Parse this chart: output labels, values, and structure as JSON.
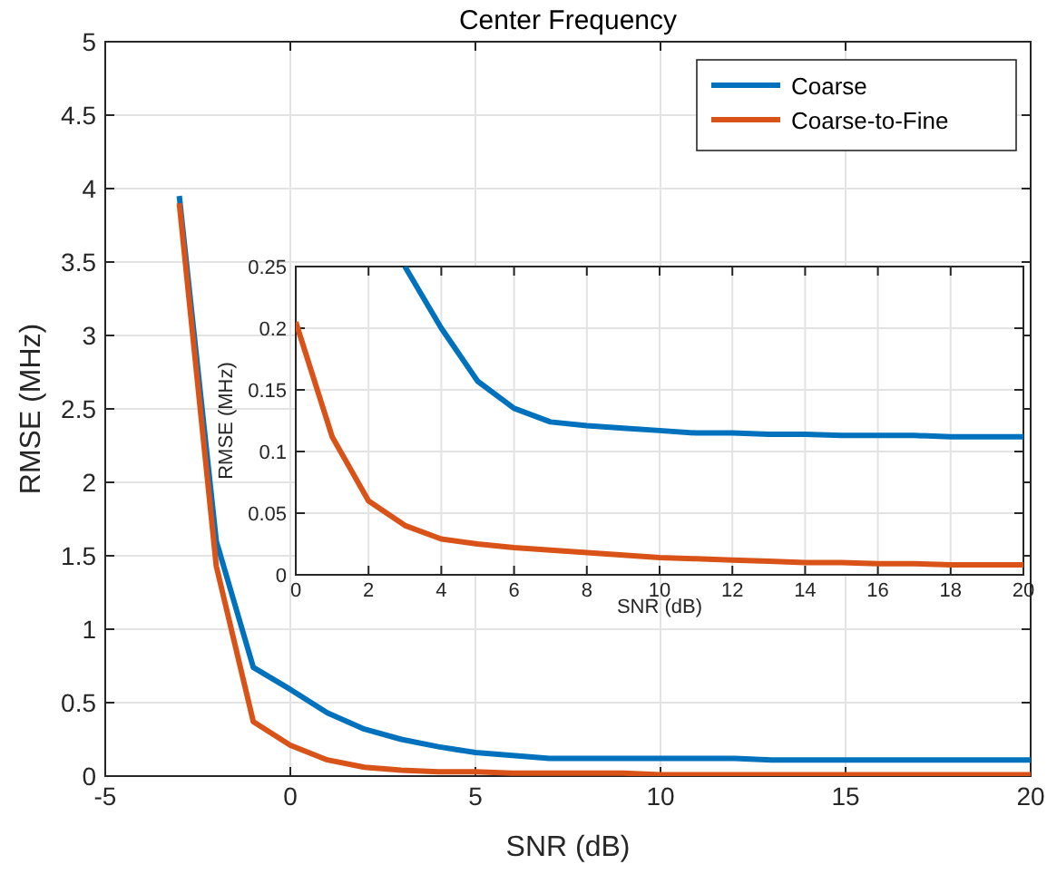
{
  "chart_data": [
    {
      "type": "line",
      "title": "Center Frequency",
      "xlabel": "SNR (dB)",
      "ylabel": "RMSE (MHz)",
      "x": [
        -3,
        -2,
        -1,
        0,
        1,
        2,
        3,
        4,
        5,
        6,
        7,
        8,
        9,
        10,
        11,
        12,
        13,
        14,
        15,
        16,
        17,
        18,
        19,
        20
      ],
      "series": [
        {
          "name": "Coarse",
          "color": "#0072bd",
          "values": [
            3.95,
            1.6,
            0.74,
            0.59,
            0.43,
            0.32,
            0.25,
            0.2,
            0.16,
            0.14,
            0.12,
            0.12,
            0.12,
            0.12,
            0.12,
            0.12,
            0.11,
            0.11,
            0.11,
            0.11,
            0.11,
            0.11,
            0.11,
            0.11
          ]
        },
        {
          "name": "Coarse-to-Fine",
          "color": "#d95319",
          "values": [
            3.9,
            1.43,
            0.37,
            0.21,
            0.11,
            0.06,
            0.04,
            0.03,
            0.03,
            0.02,
            0.02,
            0.02,
            0.02,
            0.01,
            0.01,
            0.01,
            0.01,
            0.01,
            0.01,
            0.01,
            0.01,
            0.01,
            0.01,
            0.01
          ]
        }
      ],
      "xlim": [
        -5,
        20
      ],
      "xticks": [
        -5,
        0,
        5,
        10,
        15,
        20
      ],
      "ylim": [
        0,
        5
      ],
      "yticks": [
        0,
        0.5,
        1,
        1.5,
        2,
        2.5,
        3,
        3.5,
        4,
        4.5,
        5
      ],
      "grid": true,
      "legend": "top right"
    },
    {
      "type": "line",
      "xlabel": "SNR (dB)",
      "ylabel": "RMSE (MHz)",
      "series": [
        {
          "color": "#0072bd",
          "x": [
            3,
            4,
            5,
            6,
            7,
            8,
            9,
            10,
            11,
            12,
            13,
            14,
            15,
            16,
            17,
            18,
            19,
            20
          ],
          "values": [
            0.25,
            0.2,
            0.157,
            0.135,
            0.124,
            0.121,
            0.119,
            0.117,
            0.115,
            0.115,
            0.114,
            0.114,
            0.113,
            0.113,
            0.113,
            0.112,
            0.112,
            0.112
          ]
        },
        {
          "color": "#d95319",
          "x": [
            0,
            1,
            2,
            3,
            4,
            5,
            6,
            7,
            8,
            9,
            10,
            11,
            12,
            13,
            14,
            15,
            16,
            17,
            18,
            19,
            20
          ],
          "values": [
            0.205,
            0.112,
            0.06,
            0.04,
            0.029,
            0.025,
            0.022,
            0.02,
            0.018,
            0.016,
            0.014,
            0.013,
            0.012,
            0.011,
            0.01,
            0.01,
            0.009,
            0.009,
            0.008,
            0.008,
            0.008
          ]
        }
      ],
      "xlim": [
        0,
        20
      ],
      "xticks": [
        0,
        2,
        4,
        6,
        8,
        10,
        12,
        14,
        16,
        18,
        20
      ],
      "ylim": [
        0,
        0.25
      ],
      "yticks": [
        0,
        0.05,
        0.1,
        0.15,
        0.2,
        0.25
      ],
      "grid": true
    }
  ]
}
